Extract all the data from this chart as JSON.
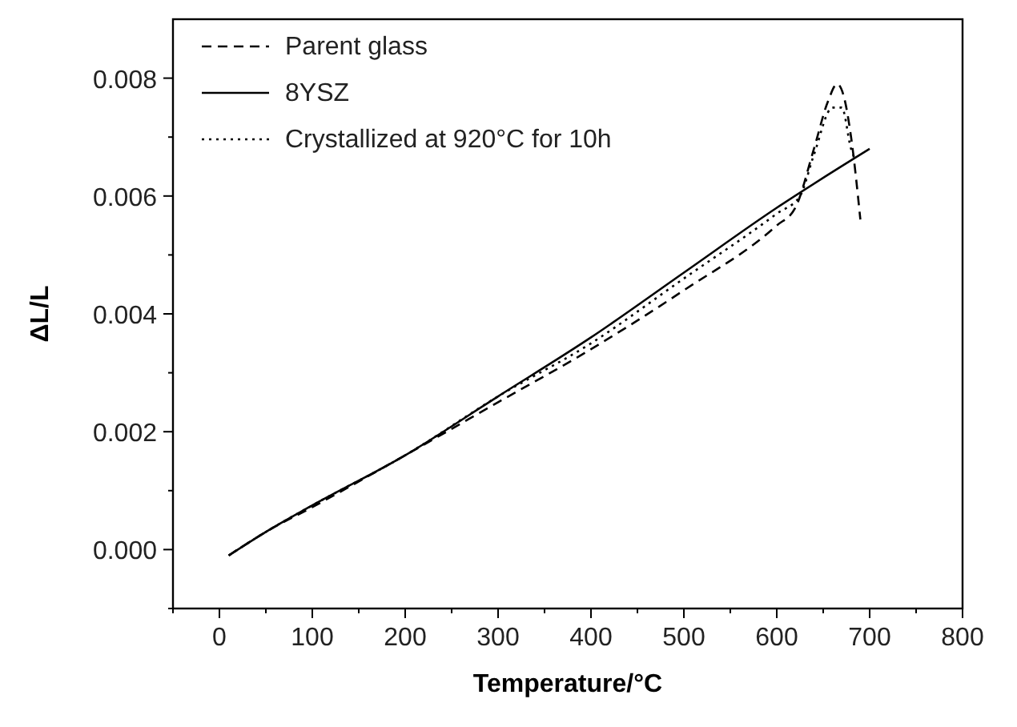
{
  "chart_data": {
    "type": "line",
    "xlabel": "Temperature/°C",
    "ylabel": "ΔL/L",
    "xlim": [
      -50,
      800
    ],
    "ylim": [
      -0.001,
      0.009
    ],
    "xticks": [
      {
        "value": -50,
        "label": null
      },
      0,
      {
        "value": 50,
        "label": null
      },
      100,
      {
        "value": 150,
        "label": null
      },
      200,
      {
        "value": 250,
        "label": null
      },
      300,
      {
        "value": 350,
        "label": null
      },
      400,
      {
        "value": 450,
        "label": null
      },
      500,
      {
        "value": 550,
        "label": null
      },
      600,
      {
        "value": 650,
        "label": null
      },
      700,
      {
        "value": 750,
        "label": null
      },
      800
    ],
    "yticks": [
      {
        "value": -0.001,
        "label": null
      },
      {
        "value": 0,
        "label": "0.000"
      },
      {
        "value": 0.001,
        "label": null
      },
      {
        "value": 0.002,
        "label": "0.002"
      },
      {
        "value": 0.003,
        "label": null
      },
      {
        "value": 0.004,
        "label": "0.004"
      },
      {
        "value": 0.005,
        "label": null
      },
      {
        "value": 0.006,
        "label": "0.006"
      },
      {
        "value": 0.007,
        "label": null
      },
      {
        "value": 0.008,
        "label": "0.008"
      }
    ],
    "grid": false,
    "legend": "top left",
    "marker": "none",
    "series": [
      {
        "name": "Parent glass",
        "color": "#000000",
        "line_style": "dashed",
        "x": [
          10,
          50,
          100,
          200,
          300,
          400,
          500,
          600,
          620,
          640,
          655,
          665,
          672,
          680,
          690
        ],
        "values": [
          -0.0001,
          0.0003,
          0.00072,
          0.0016,
          0.0025,
          0.0034,
          0.0044,
          0.0055,
          0.0058,
          0.0068,
          0.0076,
          0.0079,
          0.0077,
          0.007,
          0.0056
        ]
      },
      {
        "name": "8YSZ",
        "color": "#000000",
        "line_style": "solid",
        "x": [
          10,
          50,
          100,
          200,
          300,
          400,
          500,
          600,
          700
        ],
        "values": [
          -0.0001,
          0.0003,
          0.00075,
          0.0016,
          0.0026,
          0.0036,
          0.0047,
          0.0058,
          0.0068
        ]
      },
      {
        "name": "Crystallized at 920°C for 10h",
        "color": "#000000",
        "line_style": "dotted",
        "x": [
          10,
          50,
          100,
          200,
          300,
          400,
          500,
          600,
          625,
          640,
          660,
          670,
          680,
          685
        ],
        "values": [
          -0.0001,
          0.0003,
          0.00075,
          0.0016,
          0.0026,
          0.0035,
          0.0046,
          0.0057,
          0.006,
          0.0067,
          0.0075,
          0.0075,
          0.0068,
          0.0066
        ]
      }
    ]
  }
}
